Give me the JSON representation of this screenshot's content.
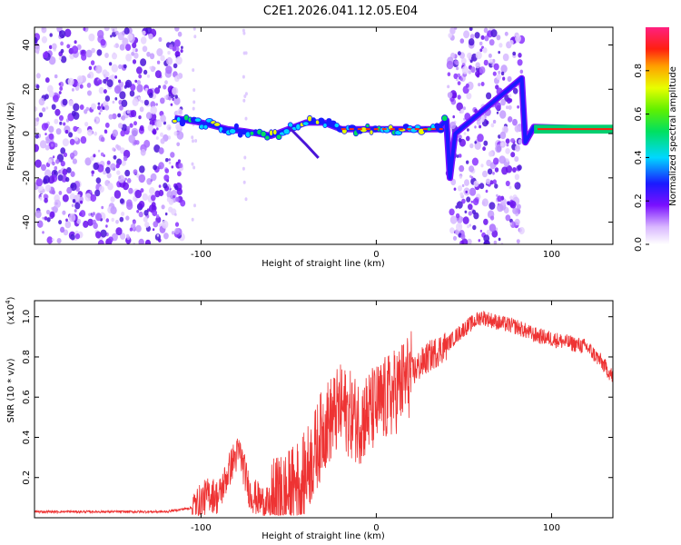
{
  "figure_title": "C2E1.2026.041.12.05.E04",
  "chart_data": [
    {
      "type": "heatmap",
      "name": "spectrogram",
      "xlabel": "Height of straight line (km)",
      "ylabel": "Frequency (Hz)",
      "xlim": [
        -195,
        135
      ],
      "ylim": [
        -50,
        48
      ],
      "xticks": [
        -100,
        0,
        100
      ],
      "yticks": [
        -40,
        -20,
        0,
        20,
        40
      ],
      "noise_regions": [
        {
          "x": [
            -195,
            -110
          ],
          "density": "high"
        },
        {
          "x": [
            41,
            83
          ],
          "density": "high"
        }
      ],
      "track": [
        {
          "x": -115,
          "y": 7
        },
        {
          "x": -100,
          "y": 5
        },
        {
          "x": -85,
          "y": 2
        },
        {
          "x": -75,
          "y": 1
        },
        {
          "x": -60,
          "y": -1
        },
        {
          "x": -50,
          "y": 2
        },
        {
          "x": -40,
          "y": 5
        },
        {
          "x": -30,
          "y": 5
        },
        {
          "x": -20,
          "y": 2
        },
        {
          "x": 0,
          "y": 2
        },
        {
          "x": 35,
          "y": 2
        },
        {
          "x": 40,
          "y": 6
        },
        {
          "x": 42,
          "y": -20
        },
        {
          "x": 45,
          "y": 0
        },
        {
          "x": 83,
          "y": 25
        },
        {
          "x": 85,
          "y": -4
        },
        {
          "x": 90,
          "y": 3
        },
        {
          "x": 135,
          "y": 2
        }
      ],
      "colorbar": {
        "label": "Normalized spectral amplitude",
        "range": [
          0,
          1
        ],
        "ticks": [
          "0.0",
          "0.2",
          "0.4",
          "0.6",
          "0.8"
        ],
        "tick_values": [
          0.0,
          0.2,
          0.4,
          0.6,
          0.8
        ]
      }
    },
    {
      "type": "line",
      "name": "snr",
      "xlabel": "Height of straight line (km)",
      "ylabel": "SNR (10 * v/v)",
      "y_multiplier": "(x10",
      "y_multiplier_exp": "4",
      "y_multiplier_close": ")",
      "xlim": [
        -195,
        135
      ],
      "ylim": [
        0,
        1.08
      ],
      "xticks": [
        -100,
        0,
        100
      ],
      "yticks": [
        0.2,
        0.4,
        0.6,
        0.8,
        1.0
      ],
      "ytick_labels": [
        "0.2",
        "0.4",
        "0.6",
        "0.8",
        "1.0"
      ],
      "color": "#ee3333",
      "envelope": [
        {
          "x": -195,
          "y": 0.03
        },
        {
          "x": -120,
          "y": 0.03
        },
        {
          "x": -105,
          "y": 0.05
        },
        {
          "x": -95,
          "y": 0.12
        },
        {
          "x": -90,
          "y": 0.1
        },
        {
          "x": -82,
          "y": 0.28
        },
        {
          "x": -78,
          "y": 0.33
        },
        {
          "x": -72,
          "y": 0.12
        },
        {
          "x": -62,
          "y": 0.06
        },
        {
          "x": -50,
          "y": 0.12
        },
        {
          "x": -42,
          "y": 0.2
        },
        {
          "x": -36,
          "y": 0.3
        },
        {
          "x": -30,
          "y": 0.45
        },
        {
          "x": -20,
          "y": 0.55
        },
        {
          "x": -10,
          "y": 0.48
        },
        {
          "x": 0,
          "y": 0.55
        },
        {
          "x": 10,
          "y": 0.62
        },
        {
          "x": 20,
          "y": 0.72
        },
        {
          "x": 30,
          "y": 0.8
        },
        {
          "x": 40,
          "y": 0.86
        },
        {
          "x": 50,
          "y": 0.94
        },
        {
          "x": 60,
          "y": 1.0
        },
        {
          "x": 70,
          "y": 0.97
        },
        {
          "x": 80,
          "y": 0.95
        },
        {
          "x": 90,
          "y": 0.91
        },
        {
          "x": 100,
          "y": 0.89
        },
        {
          "x": 110,
          "y": 0.87
        },
        {
          "x": 120,
          "y": 0.85
        },
        {
          "x": 128,
          "y": 0.78
        },
        {
          "x": 135,
          "y": 0.7
        }
      ]
    }
  ]
}
